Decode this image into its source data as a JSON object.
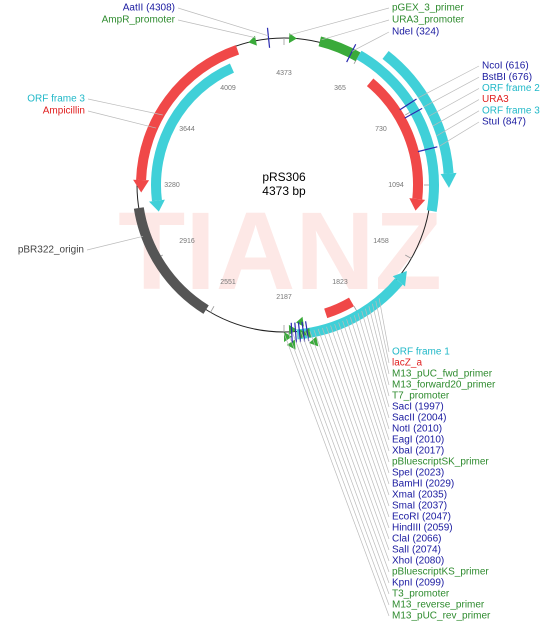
{
  "title": "pRS306",
  "length": "4373 bp",
  "watermark": "TIANZ",
  "ticks": [
    4373,
    365,
    730,
    1094,
    1458,
    1823,
    2187,
    2551,
    2916,
    3280,
    3644,
    4009
  ],
  "labels": {
    "top_left": [
      {
        "text": "AatII (4308)",
        "color": "#1a1aa0"
      },
      {
        "text": "AmpR_promoter",
        "color": "#2e8b2e"
      }
    ],
    "top_right": [
      {
        "text": "pGEX_3_primer",
        "color": "#2e8b2e"
      },
      {
        "text": "URA3_promoter",
        "color": "#2e8b2e"
      },
      {
        "text": "NdeI (324)",
        "color": "#1a1aa0"
      }
    ],
    "right": [
      {
        "text": "NcoI (616)",
        "color": "#1a1aa0"
      },
      {
        "text": "BstBI (676)",
        "color": "#1a1aa0"
      },
      {
        "text": "ORF frame 2",
        "color": "#20b8c8"
      },
      {
        "text": "URA3",
        "color": "#e02020"
      },
      {
        "text": "ORF frame 3",
        "color": "#20b8c8"
      },
      {
        "text": "StuI (847)",
        "color": "#1a1aa0"
      }
    ],
    "left": [
      {
        "text": "ORF frame 3",
        "color": "#20b8c8"
      },
      {
        "text": "Ampicillin",
        "color": "#e02020"
      }
    ],
    "origin": [
      {
        "text": "pBR322_origin",
        "color": "#444444"
      }
    ],
    "bottom": [
      {
        "text": "ORF frame 1",
        "color": "#20b8c8"
      },
      {
        "text": "lacZ_a",
        "color": "#e02020"
      },
      {
        "text": "M13_pUC_fwd_primer",
        "color": "#2e8b2e"
      },
      {
        "text": "M13_forward20_primer",
        "color": "#2e8b2e"
      },
      {
        "text": "T7_promoter",
        "color": "#2e8b2e"
      },
      {
        "text": "SacI (1997)",
        "color": "#1a1aa0"
      },
      {
        "text": "SacII (2004)",
        "color": "#1a1aa0"
      },
      {
        "text": "NotI (2010)",
        "color": "#1a1aa0"
      },
      {
        "text": "EagI (2010)",
        "color": "#1a1aa0"
      },
      {
        "text": "XbaI (2017)",
        "color": "#1a1aa0"
      },
      {
        "text": "pBluescriptSK_primer",
        "color": "#2e8b2e"
      },
      {
        "text": "SpeI (2023)",
        "color": "#1a1aa0"
      },
      {
        "text": "BamHI (2029)",
        "color": "#1a1aa0"
      },
      {
        "text": "XmaI (2035)",
        "color": "#1a1aa0"
      },
      {
        "text": "SmaI (2037)",
        "color": "#1a1aa0"
      },
      {
        "text": "EcoRI (2047)",
        "color": "#1a1aa0"
      },
      {
        "text": "HindIII (2059)",
        "color": "#1a1aa0"
      },
      {
        "text": "ClaI (2066)",
        "color": "#1a1aa0"
      },
      {
        "text": "SalI (2074)",
        "color": "#1a1aa0"
      },
      {
        "text": "XhoI (2080)",
        "color": "#1a1aa0"
      },
      {
        "text": "pBluescriptKS_primer",
        "color": "#2e8b2e"
      },
      {
        "text": "KpnI (2099)",
        "color": "#1a1aa0"
      },
      {
        "text": "T3_promoter",
        "color": "#2e8b2e"
      },
      {
        "text": "M13_reverse_primer",
        "color": "#2e8b2e"
      },
      {
        "text": "M13_pUC_rev_primer",
        "color": "#2e8b2e"
      }
    ]
  }
}
